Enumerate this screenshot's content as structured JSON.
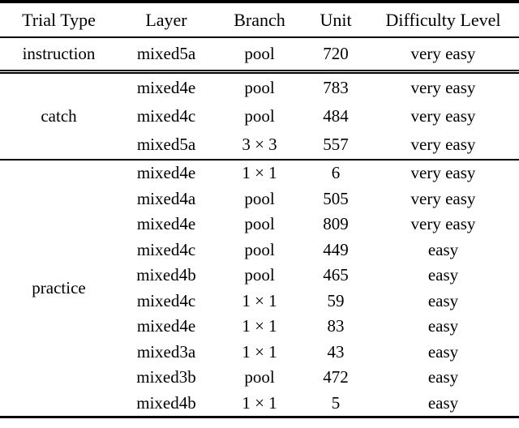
{
  "colors": {
    "text": "#000000",
    "background": "#ffffff",
    "rule": "#000000"
  },
  "table": {
    "columns": [
      "Trial Type",
      "Layer",
      "Branch",
      "Unit",
      "Difficulty Level"
    ],
    "sections": [
      {
        "trial_type": "instruction",
        "rows": [
          {
            "layer": "mixed5a",
            "branch": "pool",
            "unit": "720",
            "difficulty": "very easy"
          }
        ]
      },
      {
        "trial_type": "catch",
        "rows": [
          {
            "layer": "mixed4e",
            "branch": "pool",
            "unit": "783",
            "difficulty": "very easy"
          },
          {
            "layer": "mixed4c",
            "branch": "pool",
            "unit": "484",
            "difficulty": "very easy"
          },
          {
            "layer": "mixed5a",
            "branch": "3 × 3",
            "unit": "557",
            "difficulty": "very easy"
          }
        ]
      },
      {
        "trial_type": "practice",
        "rows": [
          {
            "layer": "mixed4e",
            "branch": "1 × 1",
            "unit": "6",
            "difficulty": "very easy"
          },
          {
            "layer": "mixed4a",
            "branch": "pool",
            "unit": "505",
            "difficulty": "very easy"
          },
          {
            "layer": "mixed4e",
            "branch": "pool",
            "unit": "809",
            "difficulty": "very easy"
          },
          {
            "layer": "mixed4c",
            "branch": "pool",
            "unit": "449",
            "difficulty": "easy"
          },
          {
            "layer": "mixed4b",
            "branch": "pool",
            "unit": "465",
            "difficulty": "easy"
          },
          {
            "layer": "mixed4c",
            "branch": "1 × 1",
            "unit": "59",
            "difficulty": "easy"
          },
          {
            "layer": "mixed4e",
            "branch": "1 × 1",
            "unit": "83",
            "difficulty": "easy"
          },
          {
            "layer": "mixed3a",
            "branch": "1 × 1",
            "unit": "43",
            "difficulty": "easy"
          },
          {
            "layer": "mixed3b",
            "branch": "pool",
            "unit": "472",
            "difficulty": "easy"
          },
          {
            "layer": "mixed4b",
            "branch": "1 × 1",
            "unit": "5",
            "difficulty": "easy"
          }
        ]
      }
    ]
  }
}
